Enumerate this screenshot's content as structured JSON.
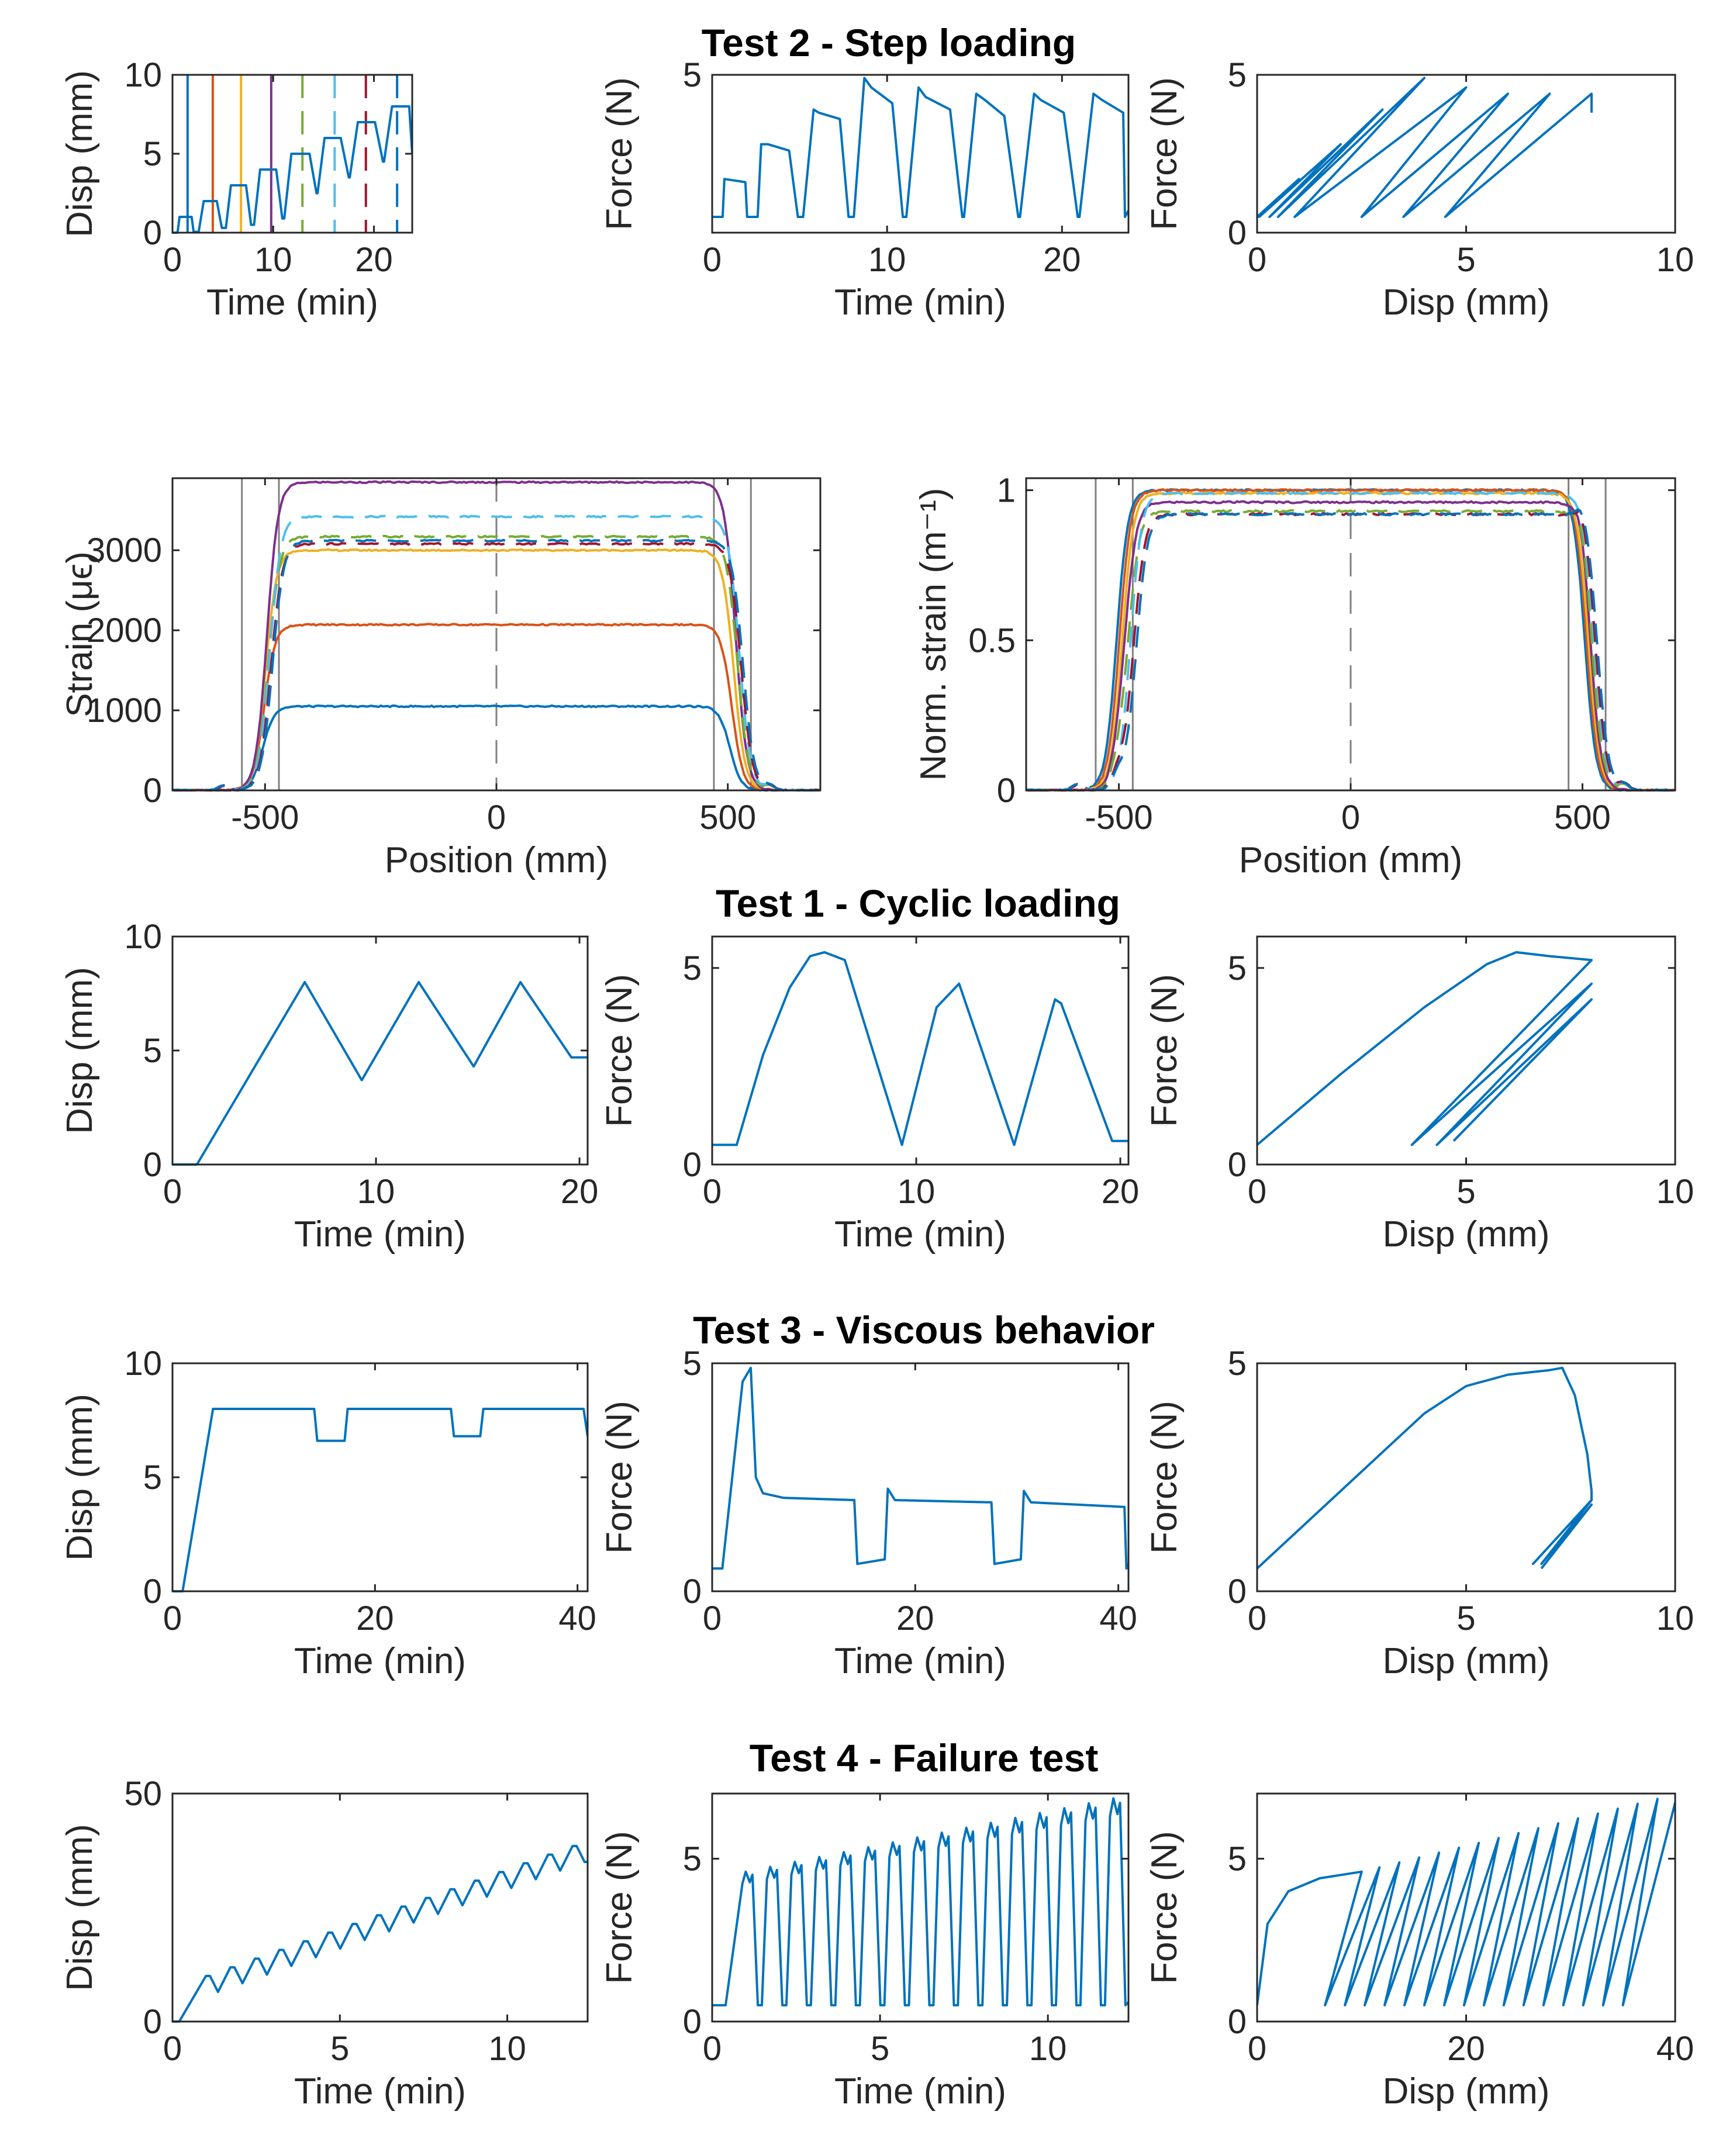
{
  "figure": {
    "titles": [
      "Test 2 - Step loading",
      "Test 1 - Cyclic loading",
      "Test 3 - Viscous behavior",
      "Test 4 - Failure test"
    ],
    "colors": {
      "main": "#0072BD",
      "series": [
        "#0072BD",
        "#D95319",
        "#EDB120",
        "#7E2F8E",
        "#77AC30",
        "#4DBEEE",
        "#A2142F",
        "#0072BD"
      ],
      "axis": "#262626",
      "guide": "#808080"
    }
  },
  "chart_data": [
    {
      "id": "t2-disp",
      "type": "line",
      "title": "Test 2 - Step loading",
      "xlabel": "Time (min)",
      "ylabel": "Disp (mm)",
      "xlim": [
        0,
        23.8
      ],
      "ylim": [
        0,
        10
      ],
      "xticks": [
        0,
        10,
        20
      ],
      "yticks": [
        0,
        5,
        10
      ],
      "series": [
        {
          "name": "Disp",
          "x": [
            0,
            0.5,
            0.7,
            1.9,
            2.1,
            2.6,
            3.1,
            4.4,
            4.9,
            5.3,
            5.8,
            7.3,
            7.8,
            8.1,
            8.7,
            10.3,
            10.9,
            11.1,
            11.8,
            13.6,
            14.3,
            14.4,
            15.1,
            16.7,
            17.5,
            17.6,
            18.4,
            20.1,
            20.9,
            21.0,
            21.8,
            23.5,
            23.8
          ],
          "y": [
            0,
            0,
            1,
            1,
            0.05,
            0.05,
            2,
            2,
            0.3,
            0.3,
            3,
            3,
            0.5,
            0.5,
            4,
            4,
            0.9,
            0.9,
            5,
            5,
            2.5,
            2.5,
            6,
            6,
            3.5,
            3.5,
            7,
            7,
            4.5,
            4.5,
            8,
            8,
            5
          ]
        }
      ],
      "markers": [
        {
          "x": 1.5,
          "style": "solid",
          "color": 0
        },
        {
          "x": 4.0,
          "style": "solid",
          "color": 1
        },
        {
          "x": 6.8,
          "style": "solid",
          "color": 2
        },
        {
          "x": 9.8,
          "style": "solid",
          "color": 3
        },
        {
          "x": 12.9,
          "style": "dashed",
          "color": 4
        },
        {
          "x": 16.1,
          "style": "dashed",
          "color": 5
        },
        {
          "x": 19.2,
          "style": "dashed",
          "color": 6
        },
        {
          "x": 22.3,
          "style": "dashed",
          "color": 7
        }
      ]
    },
    {
      "id": "t2-force",
      "type": "line",
      "xlabel": "Time (min)",
      "ylabel": "Force (N)",
      "xlim": [
        0,
        23.8
      ],
      "ylim": [
        0,
        5
      ],
      "xticks": [
        0,
        10,
        20
      ],
      "yticks": [
        5
      ],
      "series": [
        {
          "name": "Force",
          "x": [
            0,
            0.6,
            0.7,
            1.9,
            2.0,
            2.6,
            2.8,
            3.2,
            4.4,
            4.9,
            5.2,
            5.8,
            6.1,
            7.3,
            7.8,
            8.1,
            8.7,
            9.1,
            10.3,
            10.9,
            11.1,
            11.8,
            12.2,
            13.6,
            14.3,
            14.4,
            15.1,
            15.6,
            16.7,
            17.5,
            17.6,
            18.4,
            18.8,
            20.1,
            20.9,
            21.0,
            21.8,
            22.3,
            23.5,
            23.6,
            23.8
          ],
          "y": [
            0.5,
            0.5,
            1.7,
            1.6,
            0.5,
            0.5,
            2.8,
            2.8,
            2.6,
            0.5,
            0.5,
            3.9,
            3.8,
            3.6,
            0.5,
            0.5,
            4.9,
            4.6,
            4.1,
            0.5,
            0.5,
            4.6,
            4.3,
            3.9,
            0.5,
            0.5,
            4.4,
            4.2,
            3.7,
            0.5,
            0.5,
            4.4,
            4.2,
            3.8,
            0.5,
            0.5,
            4.4,
            4.2,
            3.8,
            0.5,
            0.7
          ]
        }
      ]
    },
    {
      "id": "t2-fd",
      "type": "line",
      "xlabel": "Disp (mm)",
      "ylabel": "Force (N)",
      "xlim": [
        0,
        10
      ],
      "ylim": [
        0,
        5
      ],
      "xticks": [
        0,
        5,
        10
      ],
      "yticks": [
        0,
        5
      ],
      "series": [
        {
          "name": "Force-Disp",
          "x": [
            0,
            1,
            0.05,
            2,
            0.3,
            3,
            0.5,
            4,
            0.9,
            5,
            2.5,
            6,
            3.5,
            7,
            4.5,
            8,
            8
          ],
          "y": [
            0.5,
            1.7,
            0.5,
            2.8,
            0.5,
            3.9,
            0.5,
            4.9,
            0.5,
            4.6,
            0.5,
            4.4,
            0.5,
            4.4,
            0.5,
            4.4,
            3.8
          ]
        }
      ]
    },
    {
      "id": "strain",
      "type": "line",
      "xlabel": "Position (mm)",
      "ylabel": "Strain (μϵ)",
      "xlim": [
        -700,
        700
      ],
      "ylim": [
        0,
        3900
      ],
      "xticks": [
        -500,
        0,
        500
      ],
      "yticks": [
        0,
        1000,
        2000,
        3000
      ],
      "levels": [
        1050,
        2070,
        3000,
        3850,
        3170,
        3420,
        3080,
        3120
      ],
      "styles": [
        "solid",
        "solid",
        "solid",
        "solid",
        "dashed",
        "dashed",
        "dashed",
        "dashed"
      ],
      "guides": [
        -550,
        -470,
        0,
        470,
        550
      ]
    },
    {
      "id": "norm-strain",
      "type": "line",
      "xlabel": "Position (mm)",
      "ylabel": "Norm. strain (m⁻¹)",
      "xlim": [
        -700,
        700
      ],
      "ylim": [
        0,
        1.04
      ],
      "xticks": [
        -500,
        0,
        500
      ],
      "yticks": [
        0,
        0.5,
        1
      ],
      "levels": [
        1.0,
        1.0,
        0.99,
        0.96,
        0.93,
        0.99,
        0.92,
        0.92
      ],
      "styles": [
        "solid",
        "solid",
        "solid",
        "solid",
        "dashed",
        "dashed",
        "dashed",
        "dashed"
      ],
      "guides": [
        -550,
        -470,
        0,
        470,
        550
      ]
    },
    {
      "id": "t1-disp",
      "type": "line",
      "title": "Test 1 - Cyclic loading",
      "xlabel": "Time (min)",
      "ylabel": "Disp (mm)",
      "xlim": [
        0,
        20.4
      ],
      "ylim": [
        0,
        10
      ],
      "xticks": [
        0,
        10,
        20
      ],
      "yticks": [
        0,
        5,
        10
      ],
      "series": [
        {
          "name": "Disp",
          "x": [
            0,
            1.2,
            6.5,
            9.3,
            12.1,
            14.8,
            17.1,
            19.6,
            20.4
          ],
          "y": [
            0,
            0,
            8,
            3.7,
            8,
            4.3,
            8,
            4.7,
            4.7
          ]
        }
      ]
    },
    {
      "id": "t1-force",
      "type": "line",
      "xlabel": "Time (min)",
      "ylabel": "Force (N)",
      "xlim": [
        0,
        20.4
      ],
      "ylim": [
        0,
        5.8
      ],
      "xticks": [
        0,
        10,
        20
      ],
      "yticks": [
        0,
        5
      ],
      "series": [
        {
          "name": "Force",
          "x": [
            0,
            1.2,
            2.5,
            3.8,
            4.8,
            5.5,
            6.5,
            9.3,
            11.0,
            12.1,
            14.8,
            16.8,
            17.1,
            19.6,
            20.4
          ],
          "y": [
            0.5,
            0.5,
            2.8,
            4.5,
            5.3,
            5.4,
            5.2,
            0.5,
            4.0,
            4.6,
            0.5,
            4.2,
            4.1,
            0.6,
            0.6
          ]
        }
      ]
    },
    {
      "id": "t1-fd",
      "type": "line",
      "xlabel": "Disp (mm)",
      "ylabel": "Force (N)",
      "xlim": [
        0,
        10
      ],
      "ylim": [
        0,
        5.8
      ],
      "xticks": [
        0,
        5,
        10
      ],
      "yticks": [
        0,
        5
      ],
      "series": [
        {
          "name": "Force-Disp",
          "x": [
            0,
            2,
            4,
            5.5,
            6.2,
            7,
            8,
            3.7,
            8,
            4.3,
            8,
            4.7
          ],
          "y": [
            0.5,
            2.3,
            4.0,
            5.1,
            5.4,
            5.3,
            5.2,
            0.5,
            4.6,
            0.5,
            4.2,
            0.6
          ]
        }
      ]
    },
    {
      "id": "t3-disp",
      "type": "line",
      "title": "Test 3 - Viscous behavior",
      "xlabel": "Time (min)",
      "ylabel": "Disp (mm)",
      "xlim": [
        0,
        41
      ],
      "ylim": [
        0,
        10
      ],
      "xticks": [
        0,
        20,
        40
      ],
      "yticks": [
        0,
        5,
        10
      ],
      "series": [
        {
          "name": "Disp",
          "x": [
            0,
            1,
            4,
            14,
            14.3,
            17,
            17.3,
            27.5,
            27.8,
            30.4,
            30.7,
            40.6,
            41
          ],
          "y": [
            0,
            0,
            8,
            8,
            6.6,
            6.6,
            8,
            8,
            6.8,
            6.8,
            8,
            8,
            6.8
          ]
        }
      ]
    },
    {
      "id": "t3-force",
      "type": "line",
      "xlabel": "Time (min)",
      "ylabel": "Force (N)",
      "xlim": [
        0,
        41
      ],
      "ylim": [
        0,
        5
      ],
      "xticks": [
        0,
        20,
        40
      ],
      "yticks": [
        0,
        5
      ],
      "series": [
        {
          "name": "Force",
          "x": [
            0,
            1,
            3,
            3.8,
            4.3,
            5,
            7,
            14,
            14.3,
            17,
            17.3,
            18,
            27.5,
            27.8,
            30.4,
            30.7,
            31.4,
            40.6,
            40.8,
            41
          ],
          "y": [
            0.5,
            0.5,
            4.6,
            4.9,
            2.5,
            2.15,
            2.05,
            2.0,
            0.6,
            0.7,
            2.25,
            2.0,
            1.95,
            0.6,
            0.7,
            2.2,
            1.95,
            1.85,
            0.5,
            0.6
          ]
        }
      ]
    },
    {
      "id": "t3-fd",
      "type": "line",
      "xlabel": "Disp (mm)",
      "ylabel": "Force (N)",
      "xlim": [
        0,
        10
      ],
      "ylim": [
        0,
        5
      ],
      "xticks": [
        0,
        5,
        10
      ],
      "yticks": [
        0,
        5
      ],
      "series": [
        {
          "name": "Force-Disp",
          "x": [
            0,
            2,
            4,
            5,
            6,
            7,
            7.3,
            7.6,
            7.9,
            8,
            8,
            6.6,
            8,
            6.8,
            8,
            6.8
          ],
          "y": [
            0.5,
            2.2,
            3.9,
            4.5,
            4.75,
            4.85,
            4.9,
            4.3,
            3.0,
            2.2,
            2.0,
            0.6,
            2.0,
            0.6,
            1.9,
            0.5
          ]
        }
      ]
    },
    {
      "id": "t4-disp",
      "type": "line",
      "title": "Test 4 - Failure test",
      "xlabel": "Time (min)",
      "ylabel": "Disp (mm)",
      "xlim": [
        0,
        12.4
      ],
      "ylim": [
        0,
        50
      ],
      "xticks": [
        0,
        5,
        10
      ],
      "yticks": [
        0,
        50
      ],
      "cycles": {
        "start": 1.0,
        "period": 0.73,
        "count": 16,
        "peak0": 10,
        "peakStep": 1.9,
        "drop": 3.5
      }
    },
    {
      "id": "t4-force",
      "type": "line",
      "xlabel": "Time (min)",
      "ylabel": "Force (N)",
      "xlim": [
        0,
        12.4
      ],
      "ylim": [
        0,
        7
      ],
      "xticks": [
        0,
        5,
        10
      ],
      "yticks": [
        0,
        5
      ],
      "cycles": {
        "start": 1.0,
        "period": 0.73,
        "count": 16,
        "peak0": 4.6,
        "peakStep": 0.15,
        "base": 0.5
      }
    },
    {
      "id": "t4-fd",
      "type": "line",
      "xlabel": "Disp (mm)",
      "ylabel": "Force (N)",
      "xlim": [
        0,
        40
      ],
      "ylim": [
        0,
        7
      ],
      "xticks": [
        0,
        20,
        40
      ],
      "yticks": [
        0,
        5
      ],
      "cycles": {
        "count": 16,
        "dispStart": 10,
        "dispStep": 1.9,
        "drop": 3.5,
        "peak0": 4.6,
        "peakStep": 0.15,
        "base": 0.5
      }
    }
  ]
}
